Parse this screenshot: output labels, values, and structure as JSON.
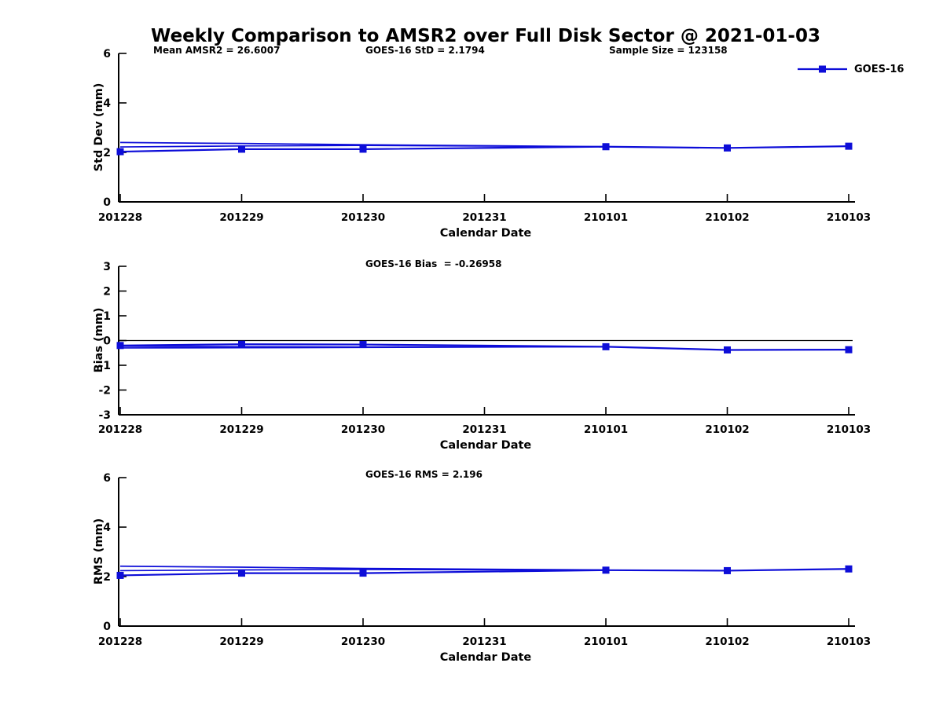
{
  "title": "Weekly Comparison to AMSR2 over Full Disk Sector @ 2021-01-03",
  "colors": {
    "series": "#0d0dd8",
    "axis": "#000000",
    "reference_line": "#000000",
    "text": "#000000",
    "background": "#ffffff"
  },
  "chart_data": [
    {
      "type": "line",
      "ylabel": "Std Dev (mm)",
      "xlabel": "Calendar Date",
      "ylim": [
        0,
        6
      ],
      "yticks": [
        0,
        2,
        4,
        6
      ],
      "categories": [
        "201228",
        "201229",
        "201230",
        "201231",
        "210101",
        "210102",
        "210103"
      ],
      "annotations": [
        "Mean AMSR2 = 26.6007",
        "GOES-16 StD = 2.1794",
        "Sample Size = 123158"
      ],
      "legend": {
        "label": "GOES-16",
        "position": "top-right"
      },
      "series": [
        {
          "name": "GOES-16",
          "marker": "square",
          "values": [
            2.03,
            2.13,
            2.13,
            null,
            2.23,
            2.18,
            2.25
          ]
        },
        {
          "name": "GOES-16 overlapping trace a",
          "marker": "none",
          "values": [
            2.4,
            2.36,
            2.31,
            null,
            2.23,
            null,
            null
          ]
        },
        {
          "name": "GOES-16 overlapping trace b",
          "marker": "none",
          "values": [
            2.22,
            2.26,
            2.28,
            null,
            2.23,
            null,
            null
          ]
        }
      ]
    },
    {
      "type": "line",
      "ylabel": "Bias (mm)",
      "xlabel": "Calendar Date",
      "ylim": [
        -3,
        3
      ],
      "yticks": [
        -3,
        -2,
        -1,
        0,
        1,
        2,
        3
      ],
      "ref_line_y": 0,
      "categories": [
        "201228",
        "201229",
        "201230",
        "201231",
        "210101",
        "210102",
        "210103"
      ],
      "annotations": [
        "GOES-16 Bias  = -0.26958"
      ],
      "series": [
        {
          "name": "GOES-16",
          "marker": "square",
          "values": [
            -0.2,
            -0.15,
            -0.16,
            null,
            -0.25,
            -0.38,
            -0.37
          ]
        },
        {
          "name": "GOES-16 overlapping trace a",
          "marker": "none",
          "values": [
            -0.3,
            -0.29,
            -0.28,
            null,
            -0.25,
            null,
            null
          ]
        },
        {
          "name": "GOES-16 overlapping trace b",
          "marker": "none",
          "values": [
            -0.23,
            -0.25,
            -0.26,
            null,
            -0.25,
            null,
            null
          ]
        }
      ]
    },
    {
      "type": "line",
      "ylabel": "RMS (mm)",
      "xlabel": "Calendar Date",
      "ylim": [
        0,
        6
      ],
      "yticks": [
        0,
        2,
        4,
        6
      ],
      "categories": [
        "201228",
        "201229",
        "201230",
        "201231",
        "210101",
        "210102",
        "210103"
      ],
      "annotations": [
        "GOES-16 RMS = 2.196"
      ],
      "series": [
        {
          "name": "GOES-16",
          "marker": "square",
          "values": [
            2.05,
            2.14,
            2.14,
            null,
            2.26,
            2.24,
            2.31
          ]
        },
        {
          "name": "GOES-16 overlapping trace a",
          "marker": "none",
          "values": [
            2.42,
            2.38,
            2.33,
            null,
            2.27,
            null,
            null
          ]
        },
        {
          "name": "GOES-16 overlapping trace b",
          "marker": "none",
          "values": [
            2.24,
            2.27,
            2.29,
            null,
            2.26,
            null,
            null
          ]
        }
      ]
    }
  ]
}
